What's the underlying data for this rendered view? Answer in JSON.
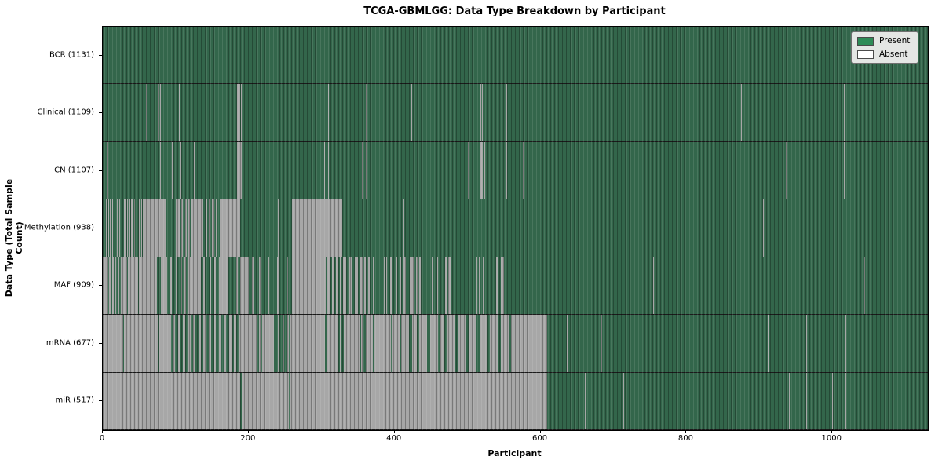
{
  "figure": {
    "title": "TCGA-GBMLGG: Data Type Breakdown by Participant"
  },
  "chart_data": {
    "type": "heatmap",
    "title": "TCGA-GBMLGG: Data Type Breakdown by Participant",
    "xlabel": "Participant",
    "ylabel": "Data Type (Total Sample Count)",
    "x_ticks": [
      0,
      200,
      400,
      600,
      800,
      1000
    ],
    "x_max": 1131,
    "grid": false,
    "legend_position": "upper right",
    "legend": [
      {
        "label": "Present",
        "color": "#2e8b57"
      },
      {
        "label": "Absent",
        "color": "#ffffff"
      }
    ],
    "colors": {
      "present_fill": "#33664b",
      "absent_fill": "#a7a7a7",
      "row_border": "#1b1b1b",
      "plot_border": "#000000",
      "legend_bg": "#e4e6e4",
      "legend_border": "#6f6f6f"
    },
    "rows": [
      {
        "id": "bcr",
        "data_type": "BCR",
        "total": 1131,
        "label": "BCR (1131)",
        "absent_segments": []
      },
      {
        "id": "clinical",
        "data_type": "Clinical",
        "total": 1109,
        "label": "Clinical (1109)",
        "absent_segments": [
          [
            59,
            60
          ],
          [
            75,
            76
          ],
          [
            79,
            80
          ],
          [
            96,
            97
          ],
          [
            104,
            105
          ],
          [
            184,
            186
          ],
          [
            187,
            188
          ],
          [
            189,
            190
          ],
          [
            256,
            257
          ],
          [
            309,
            310
          ],
          [
            360,
            361
          ],
          [
            423,
            424
          ],
          [
            517,
            519
          ],
          [
            520,
            521
          ],
          [
            522,
            523
          ],
          [
            553,
            554
          ],
          [
            875,
            876
          ],
          [
            1016,
            1017
          ]
        ]
      },
      {
        "id": "cn",
        "data_type": "CN",
        "total": 1107,
        "label": "CN (1107)",
        "absent_segments": [
          [
            5,
            6
          ],
          [
            61,
            62
          ],
          [
            79,
            80
          ],
          [
            95,
            96
          ],
          [
            105,
            106
          ],
          [
            125,
            126
          ],
          [
            184,
            190
          ],
          [
            256,
            257
          ],
          [
            304,
            305
          ],
          [
            309,
            310
          ],
          [
            355,
            356
          ],
          [
            360,
            361
          ],
          [
            500,
            501
          ],
          [
            517,
            521
          ],
          [
            523,
            524
          ],
          [
            553,
            554
          ],
          [
            576,
            577
          ],
          [
            936,
            937
          ],
          [
            1016,
            1017
          ]
        ]
      },
      {
        "id": "methylation",
        "data_type": "Methylation",
        "total": 938,
        "label": "Methylation (938)",
        "absent_segments": [
          [
            4,
            5
          ],
          [
            7,
            8
          ],
          [
            10,
            11
          ],
          [
            13,
            14
          ],
          [
            16,
            17
          ],
          [
            19,
            21
          ],
          [
            23,
            24
          ],
          [
            26,
            27
          ],
          [
            29,
            31
          ],
          [
            33,
            34
          ],
          [
            36,
            37
          ],
          [
            39,
            41
          ],
          [
            43,
            44
          ],
          [
            46,
            47
          ],
          [
            49,
            51
          ],
          [
            53,
            54
          ],
          [
            55,
            87
          ],
          [
            100,
            105
          ],
          [
            108,
            110
          ],
          [
            113,
            115
          ],
          [
            117,
            119
          ],
          [
            121,
            138
          ],
          [
            141,
            143
          ],
          [
            145,
            147
          ],
          [
            150,
            152
          ],
          [
            155,
            157
          ],
          [
            160,
            162
          ],
          [
            163,
            188
          ],
          [
            240,
            241
          ],
          [
            259,
            328
          ],
          [
            412,
            413
          ],
          [
            872,
            873
          ],
          [
            905,
            906
          ]
        ]
      },
      {
        "id": "maf",
        "data_type": "MAF",
        "total": 909,
        "label": "MAF (909)",
        "absent_segments": [
          [
            0,
            8
          ],
          [
            9,
            12
          ],
          [
            13,
            15
          ],
          [
            17,
            18
          ],
          [
            20,
            22
          ],
          [
            25,
            33
          ],
          [
            34,
            48
          ],
          [
            49,
            63
          ],
          [
            64,
            74
          ],
          [
            80,
            88
          ],
          [
            93,
            95
          ],
          [
            100,
            102
          ],
          [
            107,
            109
          ],
          [
            112,
            114
          ],
          [
            116,
            134
          ],
          [
            138,
            140
          ],
          [
            146,
            148
          ],
          [
            153,
            155
          ],
          [
            159,
            172
          ],
          [
            176,
            178
          ],
          [
            183,
            185
          ],
          [
            188,
            200
          ],
          [
            205,
            207
          ],
          [
            214,
            216
          ],
          [
            226,
            228
          ],
          [
            239,
            241
          ],
          [
            252,
            254
          ],
          [
            259,
            306
          ],
          [
            308,
            311
          ],
          [
            314,
            317
          ],
          [
            320,
            323
          ],
          [
            325,
            327
          ],
          [
            329,
            334
          ],
          [
            337,
            342
          ],
          [
            345,
            350
          ],
          [
            352,
            356
          ],
          [
            358,
            360
          ],
          [
            364,
            366
          ],
          [
            370,
            372
          ],
          [
            385,
            387
          ],
          [
            389,
            390
          ],
          [
            394,
            396
          ],
          [
            401,
            404
          ],
          [
            407,
            409
          ],
          [
            412,
            415
          ],
          [
            421,
            426
          ],
          [
            429,
            432
          ],
          [
            434,
            436
          ],
          [
            451,
            453
          ],
          [
            458,
            460
          ],
          [
            469,
            472
          ],
          [
            474,
            478
          ],
          [
            511,
            513
          ],
          [
            515,
            516
          ],
          [
            521,
            523
          ],
          [
            539,
            542
          ],
          [
            546,
            550
          ],
          [
            754,
            755
          ],
          [
            857,
            858
          ],
          [
            1044,
            1045
          ]
        ]
      },
      {
        "id": "mrna",
        "data_type": "mRNA",
        "total": 677,
        "label": "mRNA (677)",
        "absent_segments": [
          [
            0,
            28
          ],
          [
            29,
            75
          ],
          [
            76,
            94
          ],
          [
            96,
            99
          ],
          [
            103,
            106
          ],
          [
            110,
            113
          ],
          [
            117,
            120
          ],
          [
            124,
            127
          ],
          [
            131,
            134
          ],
          [
            138,
            141
          ],
          [
            145,
            148
          ],
          [
            152,
            155
          ],
          [
            159,
            162
          ],
          [
            166,
            169
          ],
          [
            173,
            176
          ],
          [
            180,
            183
          ],
          [
            187,
            190
          ],
          [
            190,
            212
          ],
          [
            214,
            216
          ],
          [
            218,
            235
          ],
          [
            240,
            242
          ],
          [
            247,
            249
          ],
          [
            253,
            255
          ],
          [
            257,
            305
          ],
          [
            307,
            323
          ],
          [
            325,
            327
          ],
          [
            330,
            352
          ],
          [
            354,
            356
          ],
          [
            360,
            370
          ],
          [
            372,
            395
          ],
          [
            396,
            407
          ],
          [
            409,
            420
          ],
          [
            424,
            430
          ],
          [
            434,
            444
          ],
          [
            449,
            459
          ],
          [
            463,
            468
          ],
          [
            472,
            482
          ],
          [
            486,
            497
          ],
          [
            501,
            512
          ],
          [
            516,
            527
          ],
          [
            531,
            542
          ],
          [
            546,
            557
          ],
          [
            560,
            609
          ],
          [
            636,
            637
          ],
          [
            683,
            684
          ],
          [
            756,
            757
          ],
          [
            911,
            912
          ],
          [
            964,
            965
          ],
          [
            1017,
            1019
          ],
          [
            1107,
            1108
          ]
        ]
      },
      {
        "id": "mir",
        "data_type": "miR",
        "total": 517,
        "label": "miR (517)",
        "absent_segments": [
          [
            0,
            188
          ],
          [
            190,
            255
          ],
          [
            257,
            609
          ],
          [
            661,
            662
          ],
          [
            713,
            714
          ],
          [
            941,
            942
          ],
          [
            964,
            965
          ],
          [
            1000,
            1001
          ],
          [
            1017,
            1019
          ]
        ]
      }
    ]
  }
}
